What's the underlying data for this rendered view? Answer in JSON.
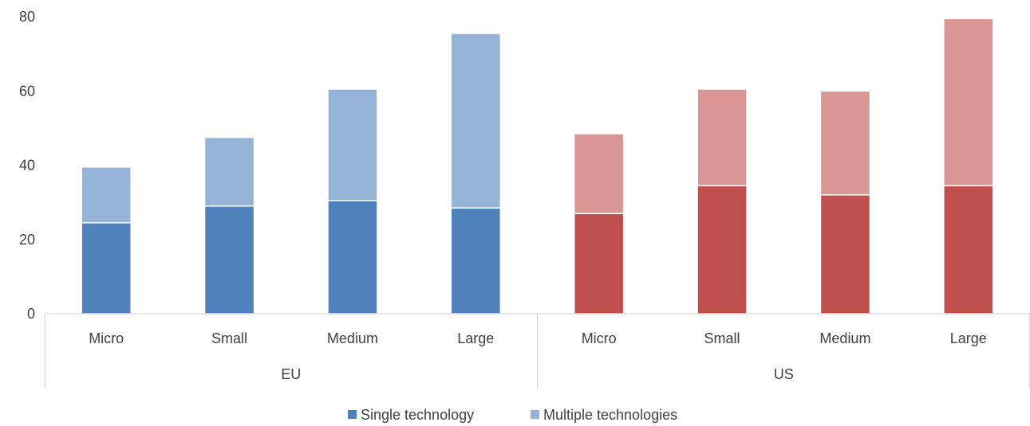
{
  "chart_data": {
    "type": "bar",
    "stacked": true,
    "groups": [
      "EU",
      "US"
    ],
    "categories": [
      "Micro",
      "Small",
      "Medium",
      "Large",
      "Micro",
      "Small",
      "Medium",
      "Large"
    ],
    "category_group": [
      "EU",
      "EU",
      "EU",
      "EU",
      "US",
      "US",
      "US",
      "US"
    ],
    "series": [
      {
        "name": "Single technology",
        "values": [
          24.5,
          29,
          30.5,
          28.5,
          27,
          34.5,
          32,
          34.5
        ]
      },
      {
        "name": "Multiple technologies",
        "values": [
          15,
          18.5,
          30,
          47,
          21.5,
          26,
          28,
          45
        ]
      }
    ],
    "colors": {
      "EU": {
        "Single technology": "#4f81bd",
        "Multiple technologies": "#95b3d7"
      },
      "US": {
        "Single technology": "#c0504d",
        "Multiple technologies": "#da9694"
      }
    },
    "yticks": [
      0,
      20,
      40,
      60,
      80
    ],
    "ylim": [
      0,
      80
    ],
    "grid": false,
    "legend_position": "bottom",
    "title": "",
    "xlabel": "",
    "ylabel": ""
  }
}
